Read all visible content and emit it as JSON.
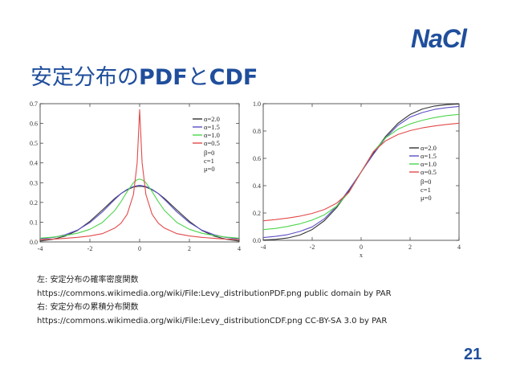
{
  "header": {
    "logo_text": "NaCl",
    "title_ja_prefix": "安定分布の",
    "title_pdf": "PDF",
    "title_ja_mid": "と",
    "title_cdf": "CDF"
  },
  "caption": {
    "line1": "左: 安定分布の確率密度関数",
    "line2": "https://commons.wikimedia.org/wiki/File:Levy_distributionPDF.png  public domain by PAR",
    "line3": "右: 安定分布の累積分布関数",
    "line4": "https://commons.wikimedia.org/wiki/File:Levy_distributionCDF.png  CC-BY-SA 3.0 by PAR"
  },
  "page_number": "21",
  "colors": {
    "brand": "#1f4e9c"
  },
  "chart_data": [
    {
      "type": "line",
      "title": "",
      "xlabel": "",
      "ylabel": "",
      "xlim": [
        -4,
        4
      ],
      "ylim": [
        0,
        0.7
      ],
      "xticks": [
        "-4",
        "-2",
        "0",
        "2",
        "4"
      ],
      "yticks": [
        "0.0",
        "0.1",
        "0.2",
        "0.3",
        "0.4",
        "0.5",
        "0.6",
        "0.7"
      ],
      "legend_position": "top-right",
      "legend_params": [
        "β=0",
        "c=1",
        "μ=0"
      ],
      "x": [
        -4,
        -3.5,
        -3,
        -2.5,
        -2,
        -1.5,
        -1,
        -0.75,
        -0.5,
        -0.25,
        -0.1,
        0,
        0.1,
        0.25,
        0.5,
        0.75,
        1,
        1.5,
        2,
        2.5,
        3,
        3.5,
        4
      ],
      "series": [
        {
          "name": "α=2.0",
          "color": "#333333",
          "values": [
            0.005,
            0.013,
            0.029,
            0.058,
            0.104,
            0.161,
            0.22,
            0.245,
            0.264,
            0.278,
            0.281,
            0.282,
            0.281,
            0.278,
            0.264,
            0.245,
            0.22,
            0.161,
            0.104,
            0.058,
            0.029,
            0.013,
            0.005
          ]
        },
        {
          "name": "α=1.5",
          "color": "#5b4fc4",
          "values": [
            0.015,
            0.022,
            0.036,
            0.06,
            0.098,
            0.152,
            0.215,
            0.245,
            0.266,
            0.281,
            0.285,
            0.287,
            0.285,
            0.281,
            0.266,
            0.245,
            0.215,
            0.152,
            0.098,
            0.06,
            0.036,
            0.022,
            0.015
          ]
        },
        {
          "name": "α=1.0",
          "color": "#4cd64c",
          "values": [
            0.019,
            0.024,
            0.032,
            0.044,
            0.064,
            0.098,
            0.159,
            0.204,
            0.255,
            0.3,
            0.315,
            0.318,
            0.315,
            0.3,
            0.255,
            0.204,
            0.159,
            0.098,
            0.064,
            0.044,
            0.032,
            0.024,
            0.019
          ]
        },
        {
          "name": "α=0.5",
          "color": "#e24a4a",
          "values": [
            0.012,
            0.014,
            0.018,
            0.023,
            0.03,
            0.042,
            0.07,
            0.095,
            0.14,
            0.24,
            0.4,
            0.67,
            0.4,
            0.24,
            0.14,
            0.095,
            0.07,
            0.042,
            0.03,
            0.023,
            0.018,
            0.014,
            0.012
          ]
        }
      ]
    },
    {
      "type": "line",
      "title": "",
      "xlabel": "x",
      "ylabel": "",
      "xlim": [
        -4,
        4
      ],
      "ylim": [
        0,
        1.0
      ],
      "xticks": [
        "-4",
        "-2",
        "0",
        "2",
        "4"
      ],
      "yticks": [
        "0.0",
        "0.2",
        "0.4",
        "0.6",
        "0.8",
        "1.0"
      ],
      "legend_position": "bottom-right",
      "legend_params": [
        "β=0",
        "c=1",
        "μ=0"
      ],
      "x": [
        -4,
        -3.5,
        -3,
        -2.5,
        -2,
        -1.5,
        -1,
        -0.5,
        0,
        0.5,
        1,
        1.5,
        2,
        2.5,
        3,
        3.5,
        4
      ],
      "series": [
        {
          "name": "α=2.0",
          "color": "#333333",
          "values": [
            0.002,
            0.007,
            0.017,
            0.039,
            0.079,
            0.144,
            0.24,
            0.362,
            0.5,
            0.638,
            0.76,
            0.856,
            0.921,
            0.961,
            0.983,
            0.993,
            0.998
          ]
        },
        {
          "name": "α=1.5",
          "color": "#5b4fc4",
          "values": [
            0.02,
            0.029,
            0.042,
            0.065,
            0.098,
            0.158,
            0.25,
            0.37,
            0.5,
            0.63,
            0.75,
            0.842,
            0.902,
            0.935,
            0.958,
            0.971,
            0.98
          ]
        },
        {
          "name": "α=1.0",
          "color": "#4cd64c",
          "values": [
            0.078,
            0.087,
            0.102,
            0.121,
            0.148,
            0.187,
            0.25,
            0.352,
            0.5,
            0.648,
            0.75,
            0.813,
            0.852,
            0.879,
            0.898,
            0.913,
            0.922
          ]
        },
        {
          "name": "α=0.5",
          "color": "#e24a4a",
          "values": [
            0.143,
            0.152,
            0.163,
            0.177,
            0.197,
            0.226,
            0.272,
            0.352,
            0.5,
            0.648,
            0.728,
            0.774,
            0.803,
            0.823,
            0.837,
            0.848,
            0.857
          ]
        }
      ]
    }
  ]
}
